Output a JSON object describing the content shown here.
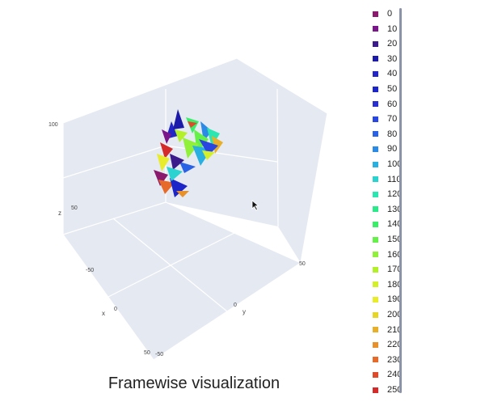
{
  "title": "Framewise visualization",
  "scene": {
    "z_axis": {
      "title": "z",
      "ticks": [
        "100",
        "50"
      ]
    },
    "x_axis": {
      "title": "x",
      "ticks": [
        "-50",
        "0",
        "50"
      ]
    },
    "y_axis": {
      "title": "y",
      "ticks": [
        "-50",
        "0",
        "50"
      ]
    },
    "background_color": "#e5e9f2"
  },
  "legend": {
    "items": [
      {
        "label": "0",
        "color": "#8b1a6e"
      },
      {
        "label": "10",
        "color": "#7a168a"
      },
      {
        "label": "20",
        "color": "#3b1a8c"
      },
      {
        "label": "30",
        "color": "#1c1aa8"
      },
      {
        "label": "40",
        "color": "#2326c4"
      },
      {
        "label": "50",
        "color": "#1c26c8"
      },
      {
        "label": "60",
        "color": "#2a30d0"
      },
      {
        "label": "70",
        "color": "#2a46e0"
      },
      {
        "label": "80",
        "color": "#2a62e6"
      },
      {
        "label": "90",
        "color": "#2a8ae6"
      },
      {
        "label": "100",
        "color": "#2ab0e0"
      },
      {
        "label": "110",
        "color": "#2ad2d0"
      },
      {
        "label": "120",
        "color": "#2ae6b0"
      },
      {
        "label": "130",
        "color": "#2aea8a"
      },
      {
        "label": "140",
        "color": "#3aee6a"
      },
      {
        "label": "150",
        "color": "#66f04a"
      },
      {
        "label": "160",
        "color": "#90f03a"
      },
      {
        "label": "170",
        "color": "#b4f02a"
      },
      {
        "label": "180",
        "color": "#d4f02a"
      },
      {
        "label": "190",
        "color": "#e8ec2a"
      },
      {
        "label": "200",
        "color": "#e6d62a"
      },
      {
        "label": "210",
        "color": "#e8b02a"
      },
      {
        "label": "220",
        "color": "#e8902a"
      },
      {
        "label": "230",
        "color": "#e66a2a"
      },
      {
        "label": "240",
        "color": "#de4a2a"
      },
      {
        "label": "250",
        "color": "#d42a2a"
      }
    ]
  }
}
